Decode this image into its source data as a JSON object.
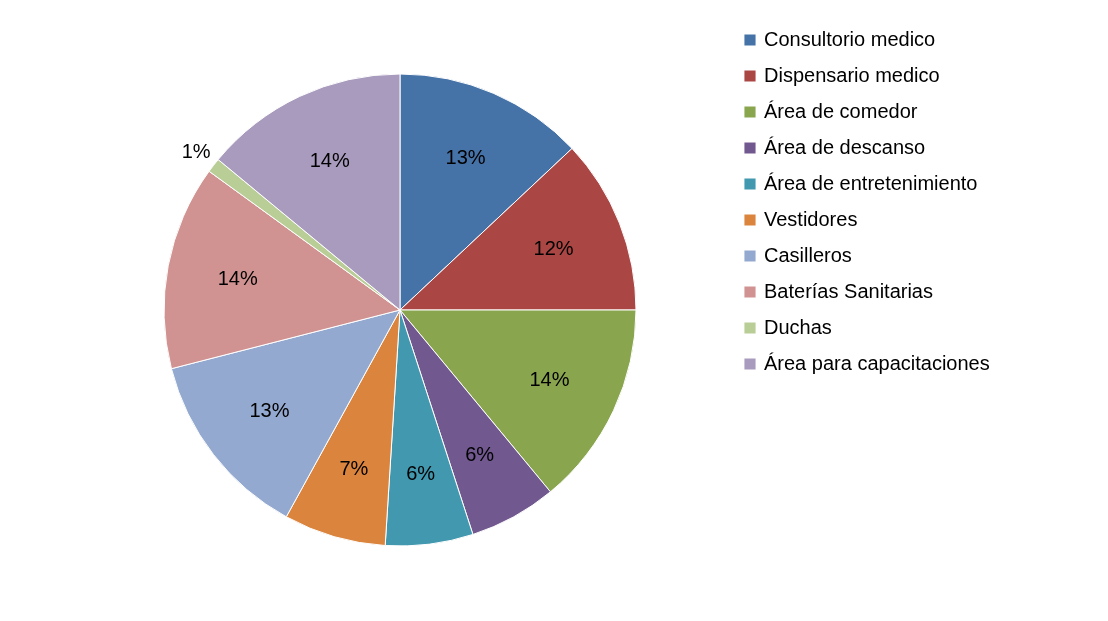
{
  "chart_data": {
    "type": "pie",
    "categories": [
      "Consultorio medico",
      "Dispensario medico",
      "Área de comedor",
      "Área de descanso",
      "Área de entretenimiento",
      "Vestidores",
      "Casilleros",
      "Baterías Sanitarias",
      "Duchas",
      "Área para capacitaciones"
    ],
    "values": [
      13,
      12,
      14,
      6,
      6,
      7,
      13,
      14,
      1,
      14
    ],
    "value_labels": [
      "13%",
      "12%",
      "14%",
      "6%",
      "6%",
      "7%",
      "13%",
      "14%",
      "1%",
      "14%"
    ],
    "colors": [
      "#4572a7",
      "#aa4643",
      "#89a54e",
      "#71588f",
      "#4198af",
      "#db843d",
      "#93a9cf",
      "#d19392",
      "#b9cd96",
      "#a99bbd"
    ],
    "legend": "right"
  }
}
